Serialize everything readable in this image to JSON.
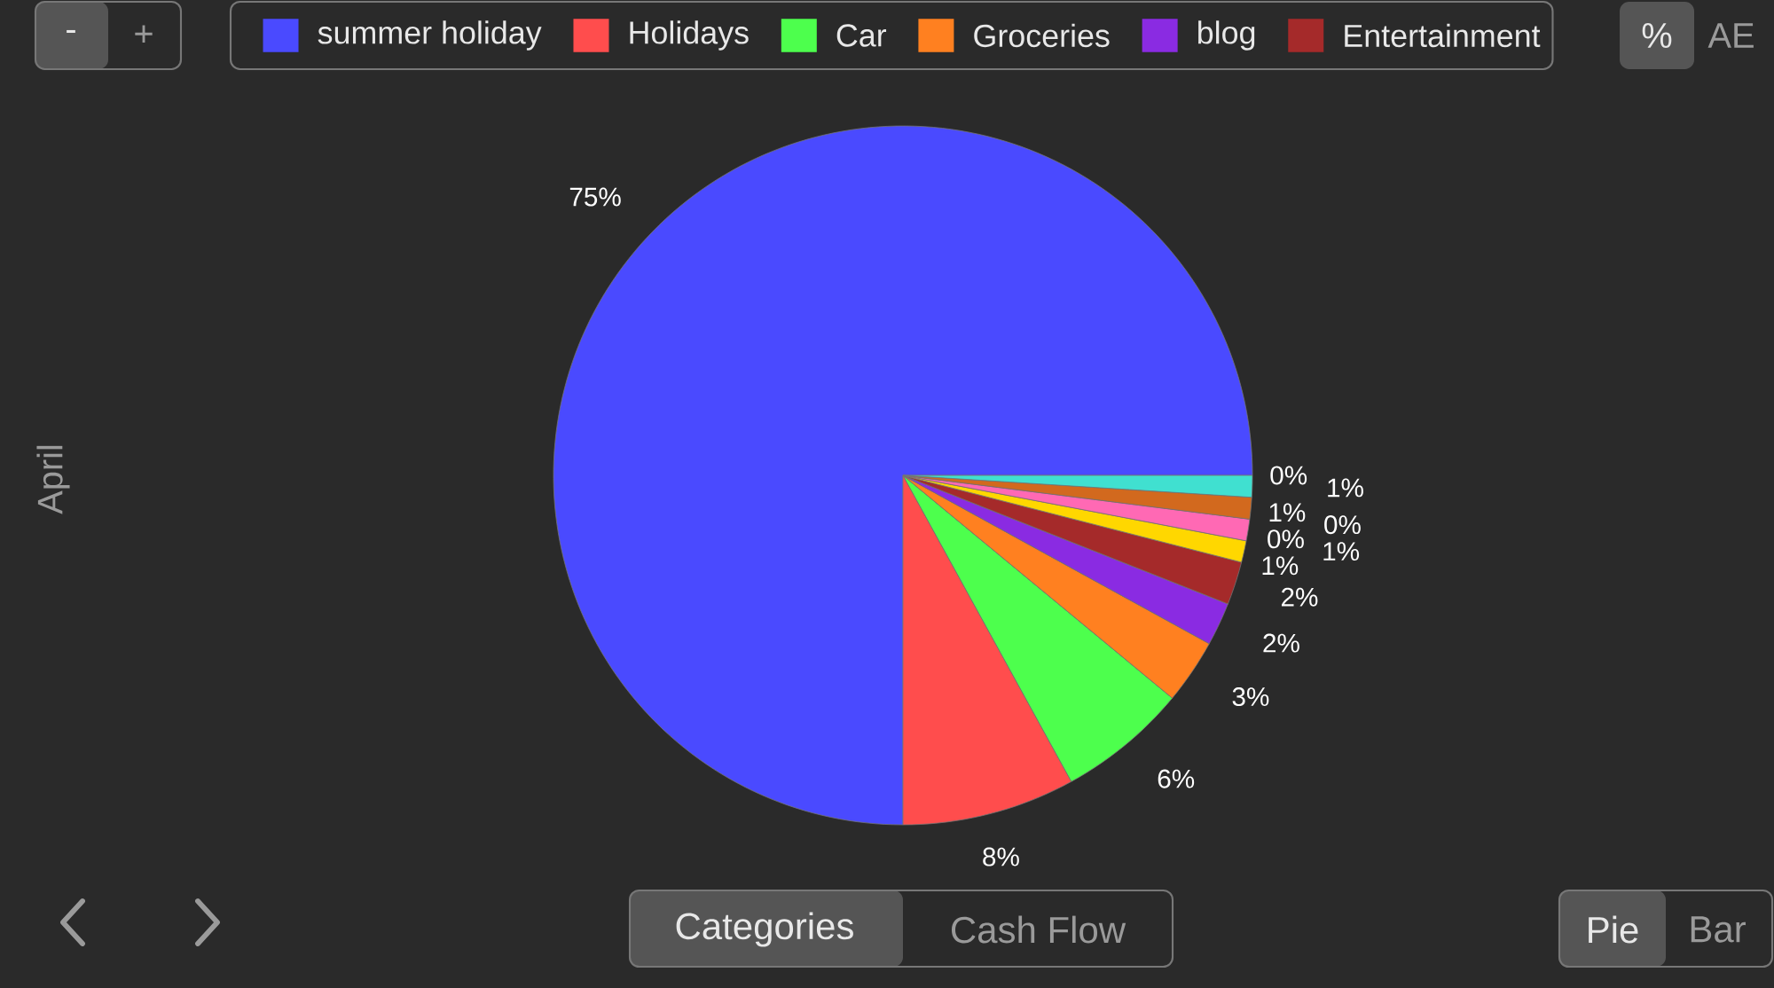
{
  "chart_data": {
    "type": "pie",
    "categories": [
      "summer holiday",
      "Holidays",
      "Car",
      "Groceries",
      "blog",
      "Entertainment",
      null,
      null,
      null,
      null,
      null,
      null,
      null
    ],
    "values": [
      75,
      8,
      6,
      3,
      2,
      2,
      1,
      1,
      0,
      0,
      1,
      1,
      0
    ],
    "value_labels": [
      "75%",
      "8%",
      "6%",
      "3%",
      "2%",
      "2%",
      "1%",
      "1%",
      "0%",
      "0%",
      "1%",
      "1%",
      "0%"
    ],
    "colors": [
      "#4a4aff",
      "#ff4d4d",
      "#4dff4d",
      "#ff8020",
      "#8a2be2",
      "#a52a2a",
      "#ffd700",
      "#ff69b4",
      "#e6e6fa",
      "#ffdab9",
      "#d2691e",
      "#40e0d0",
      "#808080"
    ],
    "legend": "top",
    "annotations": [
      "-",
      "+",
      "%",
      "AE",
      "April",
      "Categories",
      "Cash Flow",
      "Pie",
      "Bar"
    ]
  }
}
